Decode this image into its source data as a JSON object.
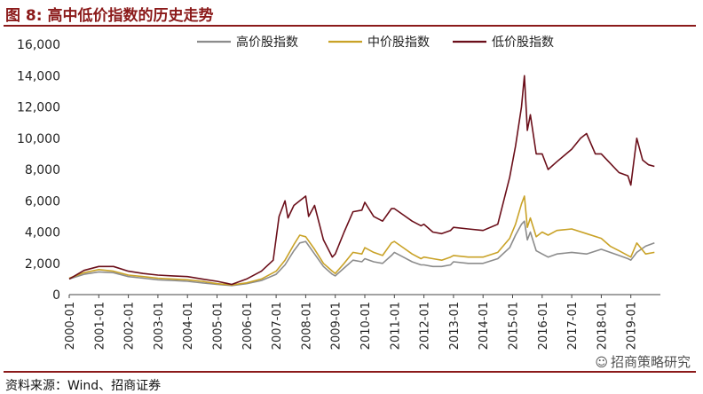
{
  "header": {
    "title": "图 8:  高中低价指数的历史走势"
  },
  "footer": {
    "source": "资料来源：Wind、招商证券",
    "watermark": "招商策略研究"
  },
  "colors": {
    "high": "#8c8c8c",
    "mid": "#c9a227",
    "low": "#6b0f1a",
    "accent": "#8b1a1a"
  },
  "chart_data": {
    "type": "line",
    "title": "",
    "xlabel": "",
    "ylabel": "",
    "ylim": [
      0,
      16000
    ],
    "yticks": [
      "0",
      "2,000",
      "4,000",
      "6,000",
      "8,000",
      "10,000",
      "12,000",
      "14,000",
      "16,000"
    ],
    "xticks": [
      "2000-01",
      "2001-01",
      "2002-01",
      "2003-01",
      "2004-01",
      "2005-01",
      "2006-01",
      "2007-01",
      "2008-01",
      "2009-01",
      "2010-01",
      "2011-01",
      "2012-01",
      "2013-01",
      "2014-01",
      "2015-01",
      "2016-01",
      "2017-01",
      "2018-01",
      "2019-01"
    ],
    "legend_position": "top",
    "series": [
      {
        "name": "高价股指数",
        "color": "#8c8c8c",
        "x": [
          2000.0,
          2000.5,
          2001.0,
          2001.5,
          2002.0,
          2002.5,
          2003.0,
          2003.5,
          2004.0,
          2004.5,
          2005.0,
          2005.5,
          2006.0,
          2006.5,
          2007.0,
          2007.3,
          2007.6,
          2007.8,
          2008.0,
          2008.3,
          2008.6,
          2008.9,
          2009.0,
          2009.3,
          2009.6,
          2009.9,
          2010.0,
          2010.3,
          2010.6,
          2010.9,
          2011.0,
          2011.3,
          2011.6,
          2011.9,
          2012.0,
          2012.3,
          2012.6,
          2012.9,
          2013.0,
          2013.5,
          2014.0,
          2014.5,
          2014.9,
          2015.1,
          2015.3,
          2015.4,
          2015.5,
          2015.6,
          2015.8,
          2016.0,
          2016.2,
          2016.5,
          2017.0,
          2017.5,
          2018.0,
          2018.3,
          2018.6,
          2018.9,
          2019.0,
          2019.2,
          2019.5,
          2019.8
        ],
        "values": [
          1000,
          1300,
          1450,
          1400,
          1150,
          1050,
          950,
          900,
          850,
          750,
          650,
          580,
          700,
          900,
          1300,
          1900,
          2800,
          3300,
          3400,
          2600,
          1800,
          1300,
          1200,
          1700,
          2200,
          2100,
          2300,
          2100,
          2000,
          2500,
          2700,
          2400,
          2100,
          1900,
          1900,
          1800,
          1800,
          1900,
          2100,
          2000,
          2000,
          2300,
          3000,
          3800,
          4500,
          4700,
          3500,
          4000,
          2800,
          2600,
          2400,
          2600,
          2700,
          2600,
          2900,
          2700,
          2500,
          2300,
          2200,
          2700,
          3100,
          3300
        ]
      },
      {
        "name": "中价股指数",
        "color": "#c9a227",
        "x": [
          2000.0,
          2000.5,
          2001.0,
          2001.5,
          2002.0,
          2002.5,
          2003.0,
          2003.5,
          2004.0,
          2004.5,
          2005.0,
          2005.5,
          2006.0,
          2006.5,
          2007.0,
          2007.3,
          2007.6,
          2007.8,
          2008.0,
          2008.3,
          2008.6,
          2008.9,
          2009.0,
          2009.3,
          2009.6,
          2009.9,
          2010.0,
          2010.3,
          2010.6,
          2010.9,
          2011.0,
          2011.3,
          2011.6,
          2011.9,
          2012.0,
          2012.3,
          2012.6,
          2012.9,
          2013.0,
          2013.5,
          2014.0,
          2014.5,
          2014.9,
          2015.1,
          2015.3,
          2015.4,
          2015.5,
          2015.6,
          2015.8,
          2016.0,
          2016.2,
          2016.5,
          2017.0,
          2017.5,
          2018.0,
          2018.3,
          2018.6,
          2018.9,
          2019.0,
          2019.2,
          2019.5,
          2019.8
        ],
        "values": [
          1050,
          1400,
          1600,
          1500,
          1250,
          1150,
          1050,
          1000,
          950,
          850,
          700,
          620,
          750,
          1000,
          1500,
          2200,
          3200,
          3800,
          3700,
          2900,
          2000,
          1500,
          1350,
          2000,
          2700,
          2600,
          3000,
          2700,
          2500,
          3300,
          3400,
          3000,
          2600,
          2300,
          2400,
          2300,
          2200,
          2400,
          2500,
          2400,
          2400,
          2700,
          3600,
          4500,
          5800,
          6300,
          4300,
          4900,
          3700,
          4000,
          3800,
          4100,
          4200,
          3900,
          3600,
          3100,
          2800,
          2500,
          2400,
          3300,
          2600,
          2700
        ]
      },
      {
        "name": "低价股指数",
        "color": "#6b0f1a",
        "x": [
          2000.0,
          2000.5,
          2001.0,
          2001.5,
          2002.0,
          2002.5,
          2003.0,
          2003.5,
          2004.0,
          2004.5,
          2005.0,
          2005.5,
          2006.0,
          2006.5,
          2006.9,
          2007.1,
          2007.3,
          2007.4,
          2007.6,
          2007.8,
          2008.0,
          2008.1,
          2008.3,
          2008.6,
          2008.9,
          2009.0,
          2009.3,
          2009.6,
          2009.9,
          2010.0,
          2010.3,
          2010.6,
          2010.9,
          2011.0,
          2011.3,
          2011.6,
          2011.9,
          2012.0,
          2012.3,
          2012.6,
          2012.9,
          2013.0,
          2013.5,
          2014.0,
          2014.5,
          2014.9,
          2015.1,
          2015.3,
          2015.4,
          2015.5,
          2015.6,
          2015.8,
          2016.0,
          2016.2,
          2016.5,
          2017.0,
          2017.3,
          2017.5,
          2017.8,
          2018.0,
          2018.3,
          2018.6,
          2018.9,
          2019.0,
          2019.2,
          2019.4,
          2019.6,
          2019.8
        ],
        "values": [
          1000,
          1550,
          1800,
          1800,
          1500,
          1350,
          1250,
          1200,
          1150,
          1000,
          850,
          650,
          1000,
          1500,
          2200,
          5000,
          6000,
          4900,
          5700,
          6000,
          6300,
          5000,
          5700,
          3500,
          2400,
          2600,
          4000,
          5300,
          5400,
          5900,
          5000,
          4700,
          5500,
          5500,
          5100,
          4700,
          4400,
          4500,
          4000,
          3900,
          4100,
          4300,
          4200,
          4100,
          4500,
          7500,
          9500,
          12000,
          14000,
          10500,
          11500,
          9000,
          9000,
          8000,
          8500,
          9300,
          10000,
          10300,
          9000,
          9000,
          8400,
          7800,
          7600,
          7000,
          10000,
          8600,
          8300,
          8200
        ]
      }
    ]
  }
}
